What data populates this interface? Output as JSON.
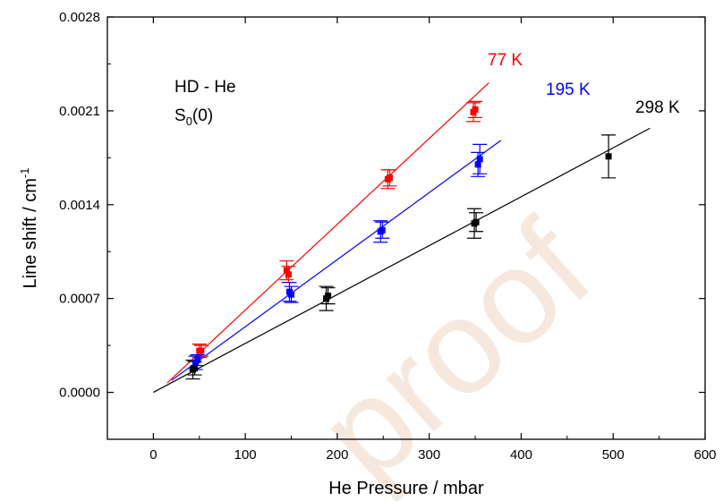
{
  "chart_data": {
    "type": "scatter",
    "xlabel": "He Pressure / mbar",
    "ylabel_main": "Line shift / cm",
    "ylabel_sup": "-1",
    "xlim": [
      -50,
      600
    ],
    "ylim": [
      -0.00035,
      0.0028
    ],
    "x_ticks": [
      0,
      100,
      200,
      300,
      400,
      500,
      600
    ],
    "x_tick_labels": [
      "0",
      "100",
      "200",
      "300",
      "400",
      "500",
      "600"
    ],
    "y_ticks": [
      0.0,
      0.0007,
      0.0014,
      0.0021,
      0.0028
    ],
    "y_tick_labels": [
      "0.0000",
      "0.0007",
      "0.0014",
      "0.0021",
      "0.0028"
    ],
    "annotation_line1": "HD - He",
    "annotation_line2_main": "S",
    "annotation_line2_sub": "0",
    "annotation_line2_rest": "(0)",
    "watermark": "proof",
    "series": [
      {
        "name": "77 K",
        "color": "#ff0000",
        "points": [
          {
            "x": 50,
            "y": 0.00031,
            "err": 5e-05
          },
          {
            "x": 52,
            "y": 0.00031,
            "err": 4e-05
          },
          {
            "x": 145,
            "y": 0.00091,
            "err": 7e-05
          },
          {
            "x": 147,
            "y": 0.00088,
            "err": 6e-05
          },
          {
            "x": 255,
            "y": 0.00159,
            "err": 7e-05
          },
          {
            "x": 257,
            "y": 0.0016,
            "err": 6e-05
          },
          {
            "x": 348,
            "y": 0.00209,
            "err": 7e-05
          },
          {
            "x": 350,
            "y": 0.00211,
            "err": 6e-05
          }
        ],
        "fit": {
          "x0": 15,
          "y0": 7e-05,
          "x1": 365,
          "y1": 0.00231
        }
      },
      {
        "name": "195 K",
        "color": "#0000ff",
        "points": [
          {
            "x": 46,
            "y": 0.00022,
            "err": 5e-05
          },
          {
            "x": 48,
            "y": 0.00024,
            "err": 4e-05
          },
          {
            "x": 148,
            "y": 0.00075,
            "err": 7e-05
          },
          {
            "x": 150,
            "y": 0.00073,
            "err": 6e-05
          },
          {
            "x": 247,
            "y": 0.0012,
            "err": 8e-05
          },
          {
            "x": 249,
            "y": 0.00121,
            "err": 6e-05
          },
          {
            "x": 353,
            "y": 0.0017,
            "err": 9e-05
          },
          {
            "x": 355,
            "y": 0.00174,
            "err": 0.00011
          }
        ],
        "fit": {
          "x0": 20,
          "y0": 9e-05,
          "x1": 378,
          "y1": 0.00188
        }
      },
      {
        "name": "298 K",
        "color": "#000000",
        "points": [
          {
            "x": 43,
            "y": 0.00017,
            "err": 7e-05
          },
          {
            "x": 45,
            "y": 0.00018,
            "err": 5e-05
          },
          {
            "x": 188,
            "y": 0.0007,
            "err": 9e-05
          },
          {
            "x": 190,
            "y": 0.00072,
            "err": 6e-05
          },
          {
            "x": 349,
            "y": 0.00126,
            "err": 0.00011
          },
          {
            "x": 351,
            "y": 0.00127,
            "err": 7e-05
          },
          {
            "x": 495,
            "y": 0.00176,
            "err": 0.00016
          }
        ],
        "fit": {
          "x0": 0,
          "y0": 0.0,
          "x1": 540,
          "y1": 0.00197
        }
      }
    ]
  }
}
